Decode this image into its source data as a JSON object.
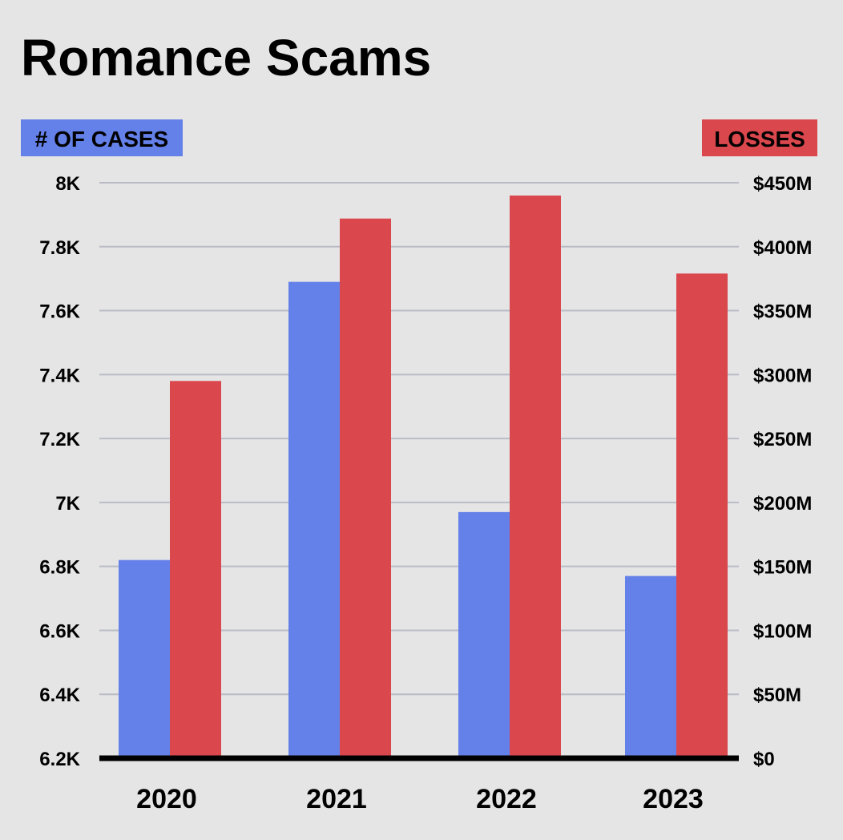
{
  "chart_data": {
    "type": "bar",
    "title": "Romance Scams",
    "categories": [
      "2020",
      "2021",
      "2022",
      "2023"
    ],
    "series": [
      {
        "name": "# OF CASES",
        "axis": "left",
        "color": "#6480e9",
        "values": [
          6820,
          7690,
          6970,
          6770
        ]
      },
      {
        "name": "LOSSES",
        "axis": "right",
        "color": "#da474d",
        "values": [
          295,
          422,
          440,
          379
        ]
      }
    ],
    "left_axis": {
      "label": "# OF CASES",
      "min": 6200,
      "max": 8000,
      "ticks": [
        8000,
        7800,
        7600,
        7400,
        7200,
        7000,
        6800,
        6600,
        6400,
        6200
      ],
      "tick_labels": [
        "8K",
        "7.8K",
        "7.6K",
        "7.4K",
        "7.2K",
        "7K",
        "6.8K",
        "6.6K",
        "6.4K",
        "6.2K"
      ]
    },
    "right_axis": {
      "label": "LOSSES",
      "min": 0,
      "max": 450,
      "unit": "M USD",
      "ticks": [
        450,
        400,
        350,
        300,
        250,
        200,
        150,
        100,
        50,
        0
      ],
      "tick_labels": [
        "$450M",
        "$400M",
        "$350M",
        "$300M",
        "$250M",
        "$200M",
        "$150M",
        "$100M",
        "$50M",
        "$0"
      ]
    },
    "grid": true,
    "colors": {
      "background": "#e5e5e5",
      "cases": "#6480e9",
      "losses": "#da474d",
      "baseline": "#000000"
    }
  }
}
